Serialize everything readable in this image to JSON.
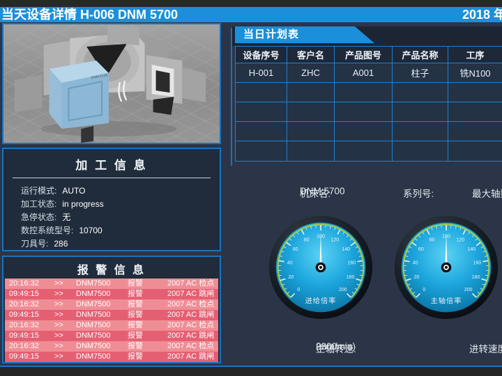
{
  "header": {
    "title": "当天设备详情  H-006   DNM 5700",
    "date": "2018 年"
  },
  "machine_panel": {
    "model_label": "DNM 5700"
  },
  "process_info": {
    "title": "加 工 信 息",
    "fields": [
      {
        "label": "运行模式:",
        "value": "AUTO"
      },
      {
        "label": "加工状态:",
        "value": "in progress"
      },
      {
        "label": "急停状态:",
        "value": "无"
      },
      {
        "label": "数控系统型号:",
        "value": "10700"
      },
      {
        "label": "刀具号:",
        "value": "286"
      }
    ]
  },
  "alarm_info": {
    "title": "报 警 信 息",
    "rows": [
      {
        "time": "20:16:32",
        "sep": ">>",
        "machine": "DNM7500",
        "type": "报警",
        "code": "2007  AC 检点"
      },
      {
        "time": "09:49:15",
        "sep": ">>",
        "machine": "DNM7500",
        "type": "报警",
        "code": "2007  AC 跳闸"
      },
      {
        "time": "20:16:32",
        "sep": ">>",
        "machine": "DNM7500",
        "type": "报警",
        "code": "2007  AC 检点"
      },
      {
        "time": "09:49:15",
        "sep": ">>",
        "machine": "DNM7500",
        "type": "报警",
        "code": "2007  AC 跳闸"
      },
      {
        "time": "20:16:32",
        "sep": ">>",
        "machine": "DNM7500",
        "type": "报警",
        "code": "2007  AC 检点"
      },
      {
        "time": "09:49:15",
        "sep": ">>",
        "machine": "DNM7500",
        "type": "报警",
        "code": "2007  AC 跳闸"
      },
      {
        "time": "20:16:32",
        "sep": ">>",
        "machine": "DNM7500",
        "type": "报警",
        "code": "2007  AC 检点"
      },
      {
        "time": "09:49:15",
        "sep": ">>",
        "machine": "DNM7500",
        "type": "报警",
        "code": "2007  AC 跳闸"
      }
    ]
  },
  "plan_table": {
    "tab_title": "当日计划表",
    "headers": [
      "设备序号",
      "客户名",
      "产品图号",
      "产品名称",
      "工序"
    ],
    "rows": [
      [
        "H-001",
        "ZHC",
        "A001",
        "柱子",
        "铣N100"
      ],
      [
        "",
        "",
        "",
        "",
        ""
      ],
      [
        "",
        "",
        "",
        "",
        ""
      ],
      [
        "",
        "",
        "",
        "",
        ""
      ],
      [
        "",
        "",
        "",
        "",
        ""
      ]
    ]
  },
  "machine_info": {
    "name_label": "机床名:",
    "name_value": "DNM 5700",
    "serial_label": "系列号:",
    "serial_value": "",
    "max_axis_label": "最大轴数"
  },
  "gauges": [
    {
      "caption": "进给倍率",
      "value": 100,
      "min": 0,
      "max": 200,
      "tick_step": 20,
      "minor_step": 5
    },
    {
      "caption": "主轴倍率",
      "value": 100,
      "min": 0,
      "max": 200,
      "tick_step": 20,
      "minor_step": 5
    }
  ],
  "bottom_info": {
    "spindle_label": "主轴转速:",
    "spindle_value": "2300",
    "spindle_unit": "(mm/min)",
    "feed_label": "进转速度"
  },
  "colors": {
    "accent_blue": "#1b8fd9",
    "border_blue": "#1a73c0",
    "table_line_blue": "#1e82d2",
    "alarm_row_light": "#ef8d95",
    "alarm_row_dark": "#e55f72",
    "gauge_arc_green": "#a9cf41",
    "panel_bg": "#202c3c",
    "main_bg": "#2b3547"
  }
}
